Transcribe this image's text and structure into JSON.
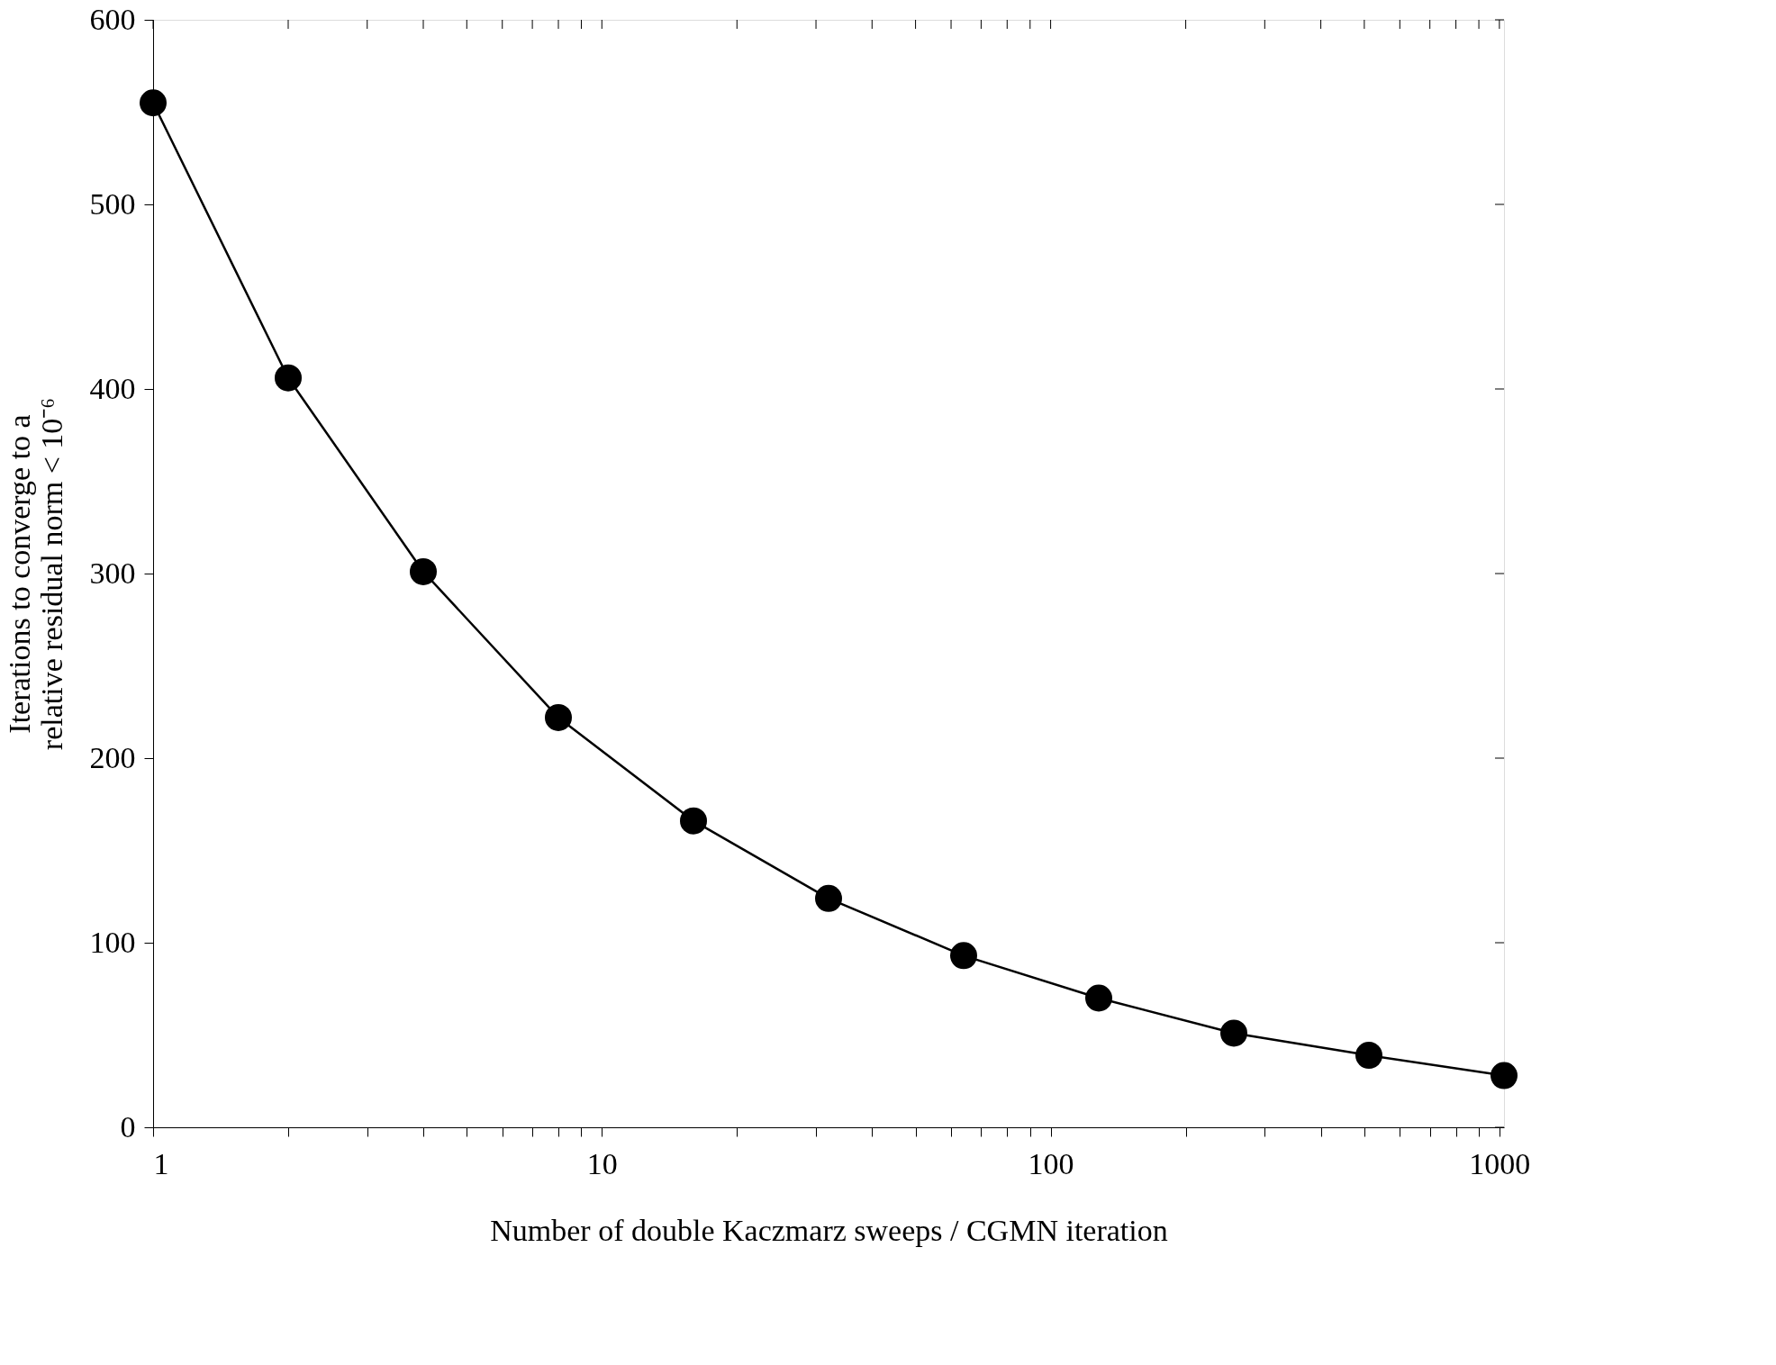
{
  "chart_data": {
    "type": "line",
    "xlabel": "Number of double Kaczmarz sweeps / CGMN iteration",
    "ylabel": "Iterations to converge to a\nrelative residual norm < 10⁻⁶",
    "x": [
      1,
      2,
      4,
      8,
      16,
      32,
      64,
      128,
      256,
      512,
      1024
    ],
    "series": [
      {
        "color": "#000000",
        "values": [
          555,
          406,
          301,
          222,
          166,
          124,
          93,
          70,
          51,
          39,
          28
        ]
      }
    ],
    "xlim": [
      1,
      1024
    ],
    "ylim": [
      0,
      600
    ],
    "xticks": [
      1,
      {
        "value": 2,
        "label": null
      },
      {
        "value": 3,
        "label": null
      },
      {
        "value": 4,
        "label": null
      },
      {
        "value": 5,
        "label": null
      },
      {
        "value": 6,
        "label": null
      },
      {
        "value": 7,
        "label": null
      },
      {
        "value": 8,
        "label": null
      },
      {
        "value": 9,
        "label": null
      },
      10,
      {
        "value": 20,
        "label": null
      },
      {
        "value": 30,
        "label": null
      },
      {
        "value": 40,
        "label": null
      },
      {
        "value": 50,
        "label": null
      },
      {
        "value": 60,
        "label": null
      },
      {
        "value": 70,
        "label": null
      },
      {
        "value": 80,
        "label": null
      },
      {
        "value": 90,
        "label": null
      },
      100,
      {
        "value": 200,
        "label": null
      },
      {
        "value": 300,
        "label": null
      },
      {
        "value": 400,
        "label": null
      },
      {
        "value": 500,
        "label": null
      },
      {
        "value": 600,
        "label": null
      },
      {
        "value": 700,
        "label": null
      },
      {
        "value": 800,
        "label": null
      },
      {
        "value": 900,
        "label": null
      },
      1000
    ],
    "yticks": [
      0,
      100,
      200,
      300,
      400,
      500,
      600
    ],
    "log": "x",
    "grid": false,
    "marker": "circle",
    "line_style": "solid"
  }
}
